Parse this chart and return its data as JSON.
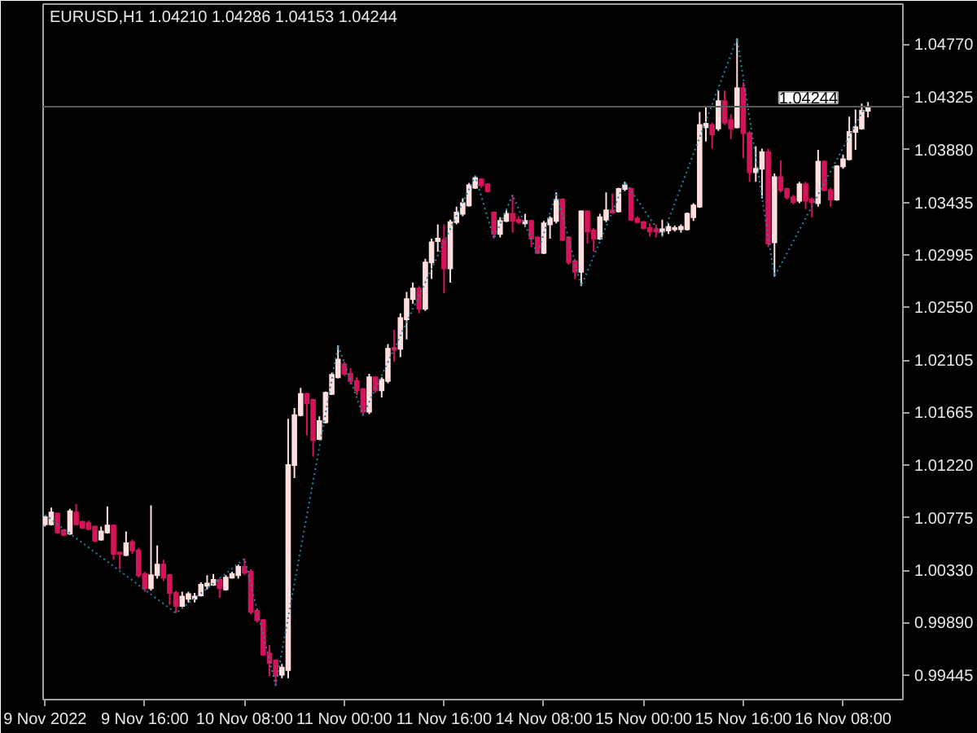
{
  "chart_data": {
    "type": "candlestick",
    "title": "EURUSD,H1  1.04210 1.04286 1.04153 1.04244",
    "categories": [
      "9 Nov 2022",
      null,
      null,
      null,
      null,
      null,
      null,
      null,
      null,
      null,
      null,
      null,
      null,
      null,
      null,
      null,
      "9 Nov 16:00",
      null,
      null,
      null,
      null,
      null,
      null,
      null,
      null,
      null,
      null,
      null,
      null,
      null,
      null,
      null,
      "10 Nov 08:00",
      null,
      null,
      null,
      null,
      null,
      null,
      null,
      null,
      null,
      null,
      null,
      null,
      null,
      null,
      null,
      "11 Nov 00:00",
      null,
      null,
      null,
      null,
      null,
      null,
      null,
      null,
      null,
      null,
      null,
      null,
      null,
      null,
      null,
      "11 Nov 16:00",
      null,
      null,
      null,
      null,
      null,
      null,
      null,
      null,
      null,
      null,
      null,
      null,
      null,
      null,
      null,
      "14 Nov 08:00",
      null,
      null,
      null,
      null,
      null,
      null,
      null,
      null,
      null,
      null,
      null,
      null,
      null,
      null,
      null,
      "15 Nov 00:00",
      null,
      null,
      null,
      null,
      null,
      null,
      null,
      null,
      null,
      null,
      null,
      null,
      null,
      null,
      null,
      "15 Nov 16:00",
      null,
      null,
      null,
      null,
      null,
      null,
      null,
      null,
      null,
      null,
      null,
      null,
      null,
      null,
      null,
      "16 Nov 08:00",
      null,
      null,
      null,
      null
    ],
    "ohlc": [
      [
        1.0072,
        1.0079,
        1.007,
        1.0078
      ],
      [
        1.0072,
        1.0086,
        1.0071,
        1.0082
      ],
      [
        1.0081,
        1.0082,
        1.0064,
        1.0065
      ],
      [
        1.0067,
        1.0068,
        1.0062,
        1.0063
      ],
      [
        1.0064,
        1.0085,
        1.0063,
        1.0083
      ],
      [
        1.0082,
        1.0089,
        1.0071,
        1.0072
      ],
      [
        1.0074,
        1.0075,
        1.0068,
        1.0069
      ],
      [
        1.0073,
        1.0075,
        1.0067,
        1.0068
      ],
      [
        1.007,
        1.0071,
        1.0057,
        1.0058
      ],
      [
        1.0059,
        1.007,
        1.0058,
        1.0066
      ],
      [
        1.0065,
        1.0087,
        1.0064,
        1.0071
      ],
      [
        1.0071,
        1.0072,
        1.0042,
        1.0047
      ],
      [
        1.0048,
        1.0049,
        1.0034,
        1.0047
      ],
      [
        1.0046,
        1.0066,
        1.0045,
        1.0056
      ],
      [
        1.0057,
        1.0059,
        1.0047,
        1.005
      ],
      [
        1.005,
        1.0052,
        1.0027,
        1.0029
      ],
      [
        1.003,
        1.0032,
        1.0015,
        1.0018
      ],
      [
        1.0018,
        1.0088,
        1.0016,
        1.0029
      ],
      [
        1.0029,
        1.0054,
        1.0026,
        1.0038
      ],
      [
        1.0038,
        1.0042,
        1.0024,
        1.0027
      ],
      [
        1.0029,
        1.003,
        1.0004,
        1.0014
      ],
      [
        1.0014,
        1.0016,
        0.9997,
        1.0003
      ],
      [
        1.0003,
        1.0015,
        1.0002,
        1.0011
      ],
      [
        1.0009,
        1.0015,
        1.0006,
        1.0013
      ],
      [
        1.0009,
        1.0014,
        1.0006,
        1.0011
      ],
      [
        1.0012,
        1.0023,
        1.0011,
        1.0021
      ],
      [
        1.002,
        1.0029,
        1.0017,
        1.0022
      ],
      [
        1.0021,
        1.003,
        1.002,
        1.0025
      ],
      [
        1.0025,
        1.0026,
        1.001,
        1.0018
      ],
      [
        1.0017,
        1.0029,
        1.0016,
        1.0027
      ],
      [
        1.0027,
        1.0032,
        1.0026,
        1.003
      ],
      [
        1.0029,
        1.0038,
        1.0026,
        1.0036
      ],
      [
        1.0036,
        1.0043,
        1.0029,
        1.0031
      ],
      [
        1.0032,
        1.0034,
        0.9996,
        0.9998
      ],
      [
        0.9999,
        1.0001,
        0.9989,
        0.9991
      ],
      [
        0.9991,
        0.9992,
        0.9961,
        0.9962
      ],
      [
        0.9963,
        0.997,
        0.9944,
        0.9955
      ],
      [
        0.9957,
        0.9958,
        0.9936,
        0.9944
      ],
      [
        0.9945,
        0.9954,
        0.9942,
        0.9951
      ],
      [
        0.9949,
        1.0161,
        0.9942,
        1.0122
      ],
      [
        1.0122,
        1.017,
        1.0111,
        1.0164
      ],
      [
        1.0164,
        1.0187,
        1.0163,
        1.0182
      ],
      [
        1.0182,
        1.0183,
        1.0147,
        1.0174
      ],
      [
        1.0177,
        1.0178,
        1.0129,
        1.0143
      ],
      [
        1.0144,
        1.0163,
        1.0143,
        1.0159
      ],
      [
        1.0158,
        1.0184,
        1.0157,
        1.0183
      ],
      [
        1.0182,
        1.02,
        1.0181,
        1.0198
      ],
      [
        1.0196,
        1.0223,
        1.0195,
        1.0211
      ],
      [
        1.0207,
        1.0209,
        1.0197,
        1.0199
      ],
      [
        1.0199,
        1.0204,
        1.019,
        1.0193
      ],
      [
        1.0193,
        1.0196,
        1.0181,
        1.0185
      ],
      [
        1.0186,
        1.0187,
        1.0164,
        1.0167
      ],
      [
        1.0167,
        1.0199,
        1.0165,
        1.0196
      ],
      [
        1.0196,
        1.0197,
        1.0183,
        1.0185
      ],
      [
        1.0185,
        1.0196,
        1.0179,
        1.0194
      ],
      [
        1.0193,
        1.0224,
        1.0191,
        1.022
      ],
      [
        1.0221,
        1.0236,
        1.0209,
        1.0219
      ],
      [
        1.022,
        1.025,
        1.0213,
        1.0246
      ],
      [
        1.0245,
        1.0268,
        1.0228,
        1.0262
      ],
      [
        1.0262,
        1.0276,
        1.0258,
        1.0271
      ],
      [
        1.0271,
        1.0273,
        1.025,
        1.0254
      ],
      [
        1.0254,
        1.0296,
        1.0252,
        1.0293
      ],
      [
        1.0293,
        1.0313,
        1.0279,
        1.031
      ],
      [
        1.0311,
        1.0325,
        1.0302,
        1.0313
      ],
      [
        1.0312,
        1.0325,
        1.0267,
        1.0288
      ],
      [
        1.0288,
        1.0329,
        1.0276,
        1.0327
      ],
      [
        1.0327,
        1.034,
        1.0325,
        1.0335
      ],
      [
        1.0334,
        1.0347,
        1.0332,
        1.0343
      ],
      [
        1.0341,
        1.036,
        1.034,
        1.0358
      ],
      [
        1.0356,
        1.0366,
        1.0355,
        1.0364
      ],
      [
        1.0363,
        1.0364,
        1.0356,
        1.0358
      ],
      [
        1.0359,
        1.036,
        1.0352,
        1.0353
      ],
      [
        1.0335,
        1.0336,
        1.0313,
        1.0317
      ],
      [
        1.0317,
        1.0331,
        1.0314,
        1.0328
      ],
      [
        1.0328,
        1.0337,
        1.0327,
        1.0334
      ],
      [
        1.0334,
        1.035,
        1.0318,
        1.0328
      ],
      [
        1.0329,
        1.0332,
        1.0325,
        1.0327
      ],
      [
        1.0326,
        1.0334,
        1.0323,
        1.0328
      ],
      [
        1.0328,
        1.0329,
        1.0306,
        1.0313
      ],
      [
        1.0314,
        1.0315,
        1.03,
        1.0301
      ],
      [
        1.0301,
        1.0328,
        1.03,
        1.0326
      ],
      [
        1.0325,
        1.0332,
        1.0313,
        1.033
      ],
      [
        1.0328,
        1.0352,
        1.0326,
        1.0346
      ],
      [
        1.0346,
        1.0347,
        1.0311,
        1.0312
      ],
      [
        1.0314,
        1.0315,
        1.0291,
        1.0293
      ],
      [
        1.0294,
        1.0296,
        1.0279,
        1.0285
      ],
      [
        1.0285,
        1.0337,
        1.0273,
        1.0336
      ],
      [
        1.0336,
        1.0337,
        1.0309,
        1.0319
      ],
      [
        1.032,
        1.0322,
        1.0302,
        1.0313
      ],
      [
        1.0313,
        1.0334,
        1.0312,
        1.0331
      ],
      [
        1.0329,
        1.0352,
        1.0327,
        1.0337
      ],
      [
        1.0337,
        1.0351,
        1.0334,
        1.0335
      ],
      [
        1.0336,
        1.0356,
        1.0335,
        1.0355
      ],
      [
        1.0355,
        1.0361,
        1.0353,
        1.0358
      ],
      [
        1.0355,
        1.0356,
        1.0328,
        1.0329
      ],
      [
        1.033,
        1.0332,
        1.0326,
        1.0327
      ],
      [
        1.0327,
        1.0328,
        1.0321,
        1.0322
      ],
      [
        1.0322,
        1.0326,
        1.0315,
        1.0319
      ],
      [
        1.0321,
        1.0325,
        1.0314,
        1.0319
      ],
      [
        1.0319,
        1.0329,
        1.0315,
        1.0321
      ],
      [
        1.032,
        1.0326,
        1.0317,
        1.0323
      ],
      [
        1.0321,
        1.0324,
        1.0319,
        1.0322
      ],
      [
        1.0321,
        1.0325,
        1.0318,
        1.0323
      ],
      [
        1.0321,
        1.0335,
        1.032,
        1.0334
      ],
      [
        1.0331,
        1.0343,
        1.0328,
        1.0341
      ],
      [
        1.034,
        1.042,
        1.0339,
        1.0409
      ],
      [
        1.0407,
        1.0425,
        1.0395,
        1.041
      ],
      [
        1.0409,
        1.0411,
        1.0389,
        1.0401
      ],
      [
        1.0406,
        1.0438,
        1.0404,
        1.0429
      ],
      [
        1.0429,
        1.0438,
        1.0409,
        1.0411
      ],
      [
        1.0413,
        1.0418,
        1.0397,
        1.0406
      ],
      [
        1.0407,
        1.0482,
        1.0406,
        1.044
      ],
      [
        1.044,
        1.0445,
        1.0381,
        1.0402
      ],
      [
        1.0402,
        1.0404,
        1.0361,
        1.0369
      ],
      [
        1.0369,
        1.0391,
        1.0361,
        1.0372
      ],
      [
        1.0372,
        1.0389,
        1.0347,
        1.0386
      ],
      [
        1.0386,
        1.0389,
        1.0306,
        1.0309
      ],
      [
        1.031,
        1.0368,
        1.0281,
        1.0365
      ],
      [
        1.0365,
        1.0379,
        1.0352,
        1.0354
      ],
      [
        1.0355,
        1.0356,
        1.0346,
        1.0348
      ],
      [
        1.0348,
        1.035,
        1.0342,
        1.0344
      ],
      [
        1.0345,
        1.0361,
        1.0343,
        1.0359
      ],
      [
        1.0359,
        1.0361,
        1.0338,
        1.0345
      ],
      [
        1.0346,
        1.0348,
        1.0331,
        1.0344
      ],
      [
        1.0343,
        1.0388,
        1.034,
        1.0378
      ],
      [
        1.0378,
        1.0379,
        1.0353,
        1.0354
      ],
      [
        1.0354,
        1.0356,
        1.034,
        1.0346
      ],
      [
        1.0346,
        1.0375,
        1.0345,
        1.0374
      ],
      [
        1.0374,
        1.0384,
        1.0372,
        1.038
      ],
      [
        1.038,
        1.0416,
        1.0379,
        1.0403
      ],
      [
        1.0403,
        1.0422,
        1.0388,
        1.0407
      ],
      [
        1.0406,
        1.0427,
        1.0405,
        1.0421
      ],
      [
        1.0421,
        1.04286,
        1.04153,
        1.04244
      ]
    ],
    "colors": [
      "#ffdede",
      "#ffdede",
      "#d4145a",
      "#d4145a",
      "#ffdede",
      "#d4145a",
      "#d4145a",
      "#d4145a",
      "#d4145a",
      "#ffdede",
      "#ffdede",
      "#d4145a",
      "#d4145a",
      "#ffdede",
      "#d4145a",
      "#d4145a",
      "#d4145a",
      "#ffdede",
      "#ffdede",
      "#d4145a",
      "#d4145a",
      "#d4145a",
      "#ffdede",
      "#ffdede",
      "#ffdede",
      "#ffdede",
      "#ffdede",
      "#ffdede",
      "#d4145a",
      "#ffdede",
      "#ffdede",
      "#ffdede",
      "#d4145a",
      "#d4145a",
      "#d4145a",
      "#d4145a",
      "#d4145a",
      "#d4145a",
      "#ffdede",
      "#ffdede",
      "#ffdede",
      "#ffdede",
      "#d4145a",
      "#d4145a",
      "#ffdede",
      "#ffdede",
      "#ffdede",
      "#ffdede",
      "#d4145a",
      "#d4145a",
      "#d4145a",
      "#d4145a",
      "#ffdede",
      "#d4145a",
      "#ffdede",
      "#ffdede",
      "#d4145a",
      "#ffdede",
      "#ffdede",
      "#ffdede",
      "#d4145a",
      "#ffdede",
      "#ffdede",
      "#ffdede",
      "#d4145a",
      "#ffdede",
      "#ffdede",
      "#ffdede",
      "#ffdede",
      "#ffdede",
      "#d4145a",
      "#d4145a",
      "#d4145a",
      "#ffdede",
      "#ffdede",
      "#d4145a",
      "#d4145a",
      "#ffdede",
      "#d4145a",
      "#d4145a",
      "#ffdede",
      "#ffdede",
      "#ffdede",
      "#d4145a",
      "#d4145a",
      "#d4145a",
      "#ffdede",
      "#d4145a",
      "#d4145a",
      "#ffdede",
      "#ffdede",
      "#d4145a",
      "#ffdede",
      "#ffdede",
      "#d4145a",
      "#d4145a",
      "#d4145a",
      "#d4145a",
      "#d4145a",
      "#ffdede",
      "#ffdede",
      "#ffdede",
      "#ffdede",
      "#ffdede",
      "#ffdede",
      "#ffdede",
      "#ffdede",
      "#d4145a",
      "#ffdede",
      "#d4145a",
      "#d4145a",
      "#ffdede",
      "#d4145a",
      "#d4145a",
      "#ffdede",
      "#ffdede",
      "#d4145a",
      "#ffdede",
      "#d4145a",
      "#d4145a",
      "#d4145a",
      "#ffdede",
      "#d4145a",
      "#d4145a",
      "#ffdede",
      "#d4145a",
      "#d4145a",
      "#ffdede",
      "#ffdede",
      "#ffdede",
      "#ffdede",
      "#ffdede",
      "#ffdede"
    ],
    "series": [
      {
        "type": "line",
        "color": "#1b87a8",
        "line_style": "dotted",
        "values": [
          1.008,
          null,
          null,
          null,
          null,
          null,
          null,
          null,
          null,
          null,
          null,
          null,
          null,
          null,
          null,
          null,
          null,
          null,
          null,
          null,
          null,
          0.9997,
          null,
          null,
          null,
          null,
          null,
          null,
          null,
          null,
          null,
          null,
          1.0043,
          null,
          null,
          null,
          null,
          0.9936,
          null,
          null,
          null,
          null,
          null,
          null,
          null,
          null,
          null,
          1.0223,
          null,
          null,
          null,
          1.0164,
          null,
          null,
          null,
          null,
          null,
          null,
          null,
          null,
          null,
          null,
          null,
          null,
          null,
          null,
          null,
          null,
          null,
          1.0366,
          null,
          null,
          1.0313,
          null,
          null,
          1.035,
          null,
          null,
          null,
          1.03,
          null,
          null,
          1.0352,
          null,
          null,
          null,
          1.0273,
          null,
          null,
          null,
          null,
          null,
          null,
          1.0361,
          null,
          null,
          null,
          null,
          null,
          1.0315,
          null,
          null,
          null,
          null,
          null,
          null,
          null,
          null,
          null,
          null,
          null,
          1.0482,
          null,
          null,
          null,
          null,
          null,
          1.0281,
          null,
          null,
          null,
          null,
          null,
          null,
          null,
          null,
          null,
          null,
          null,
          null,
          null,
          null,
          1.0429
        ]
      }
    ],
    "ylim": [
      0.9924,
      1.0511
    ],
    "yticks": [
      0.99445,
      {
        "value": 0.9989,
        "label": "0.99890"
      },
      {
        "value": 1.0033,
        "label": "1.00330"
      },
      1.00775,
      {
        "value": 1.0122,
        "label": "1.01220"
      },
      1.01665,
      1.02105,
      {
        "value": 1.0255,
        "label": "1.02550"
      },
      1.02995,
      1.03435,
      {
        "value": 1.0388,
        "label": "1.03880"
      },
      1.04325,
      {
        "value": 1.0477,
        "label": "1.04770"
      }
    ],
    "ref_lines": [
      {
        "axis": "y",
        "value": 1.04244,
        "label": "1.04244",
        "color": "#5a5a5a"
      }
    ],
    "grid": false
  }
}
